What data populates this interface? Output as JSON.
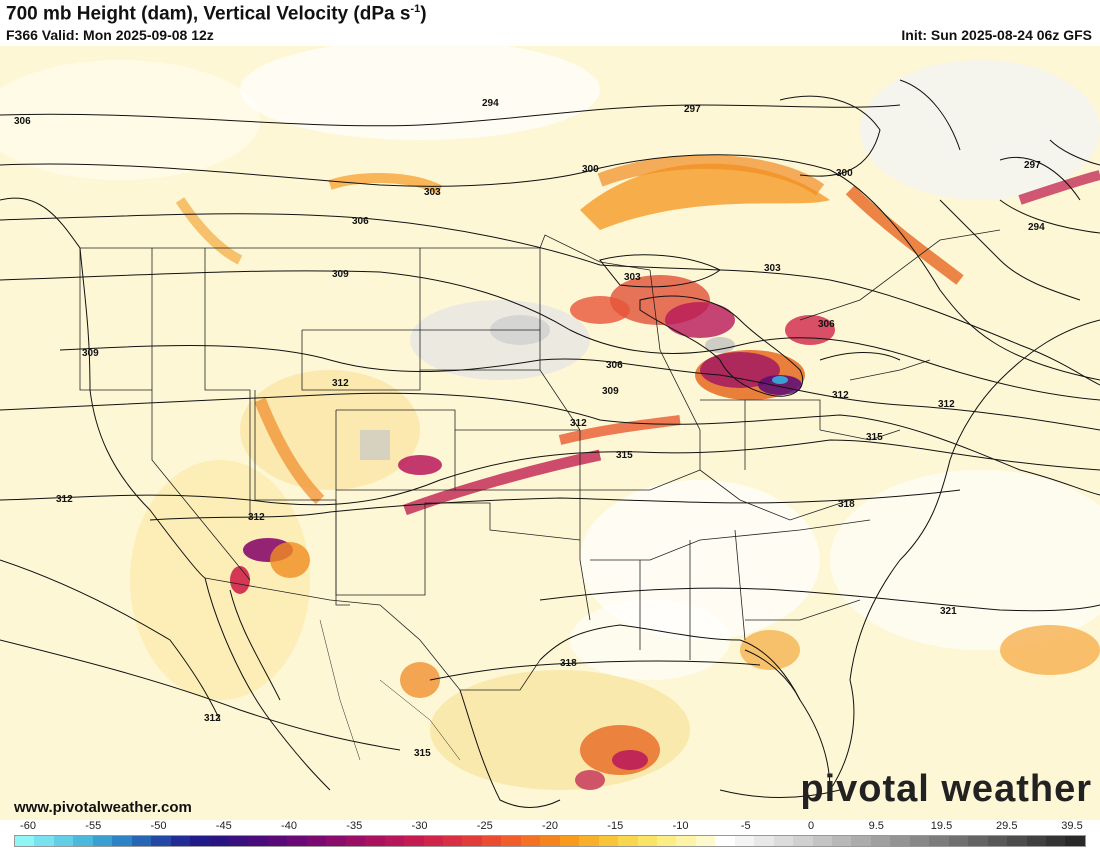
{
  "header": {
    "title": "700 mb Height (dam), Vertical Velocity (dPa s",
    "title_sup": "-1",
    "title_close": ")",
    "valid": "F366 Valid: Mon 2025-09-08 12z",
    "init": "Init: Sun 2025-08-24 06z GFS"
  },
  "footer": {
    "site": "www.pivotalweather.com",
    "brand": "pivotal weather"
  },
  "map": {
    "height_labels": [
      "306",
      "294",
      "297",
      "300",
      "300",
      "297",
      "294",
      "303",
      "306",
      "309",
      "303",
      "303",
      "306",
      "306",
      "309",
      "312",
      "309",
      "312",
      "312",
      "312",
      "315",
      "315",
      "318",
      "312",
      "312",
      "321",
      "318",
      "312",
      "315"
    ]
  },
  "colorbar": {
    "labels": [
      "-60",
      "-55",
      "-50",
      "-45",
      "-40",
      "-35",
      "-30",
      "-25",
      "-20",
      "-15",
      "-10",
      "-5",
      "0",
      "9.5",
      "19.5",
      "29.5",
      "39.5"
    ],
    "colors": [
      "#8ff5f5",
      "#78e2ee",
      "#62cfe6",
      "#4cb9dc",
      "#3aa0d2",
      "#2c84c4",
      "#2666b4",
      "#2448a4",
      "#222c94",
      "#221a88",
      "#2a1482",
      "#3a107e",
      "#4a0c7a",
      "#5a0a78",
      "#6a0a76",
      "#7a0a72",
      "#8a0c6c",
      "#9a0e66",
      "#aa1260",
      "#b8165a",
      "#c41c52",
      "#d0244a",
      "#da2e42",
      "#e23c3a",
      "#ea4c32",
      "#f05e2a",
      "#f47024",
      "#f6841e",
      "#f89a1c",
      "#f8b02a",
      "#f8c43a",
      "#f8d64e",
      "#fae466",
      "#fcee84",
      "#fdf4a8",
      "#fffacd",
      "#ffffff",
      "#f4f4f4",
      "#e8e8e8",
      "#dcdcdc",
      "#d0d0d0",
      "#c4c4c4",
      "#b8b8b8",
      "#acacac",
      "#a0a0a0",
      "#949494",
      "#888888",
      "#7c7c7c",
      "#707070",
      "#646464",
      "#585858",
      "#4c4c4c",
      "#404040",
      "#343434",
      "#282828"
    ]
  }
}
